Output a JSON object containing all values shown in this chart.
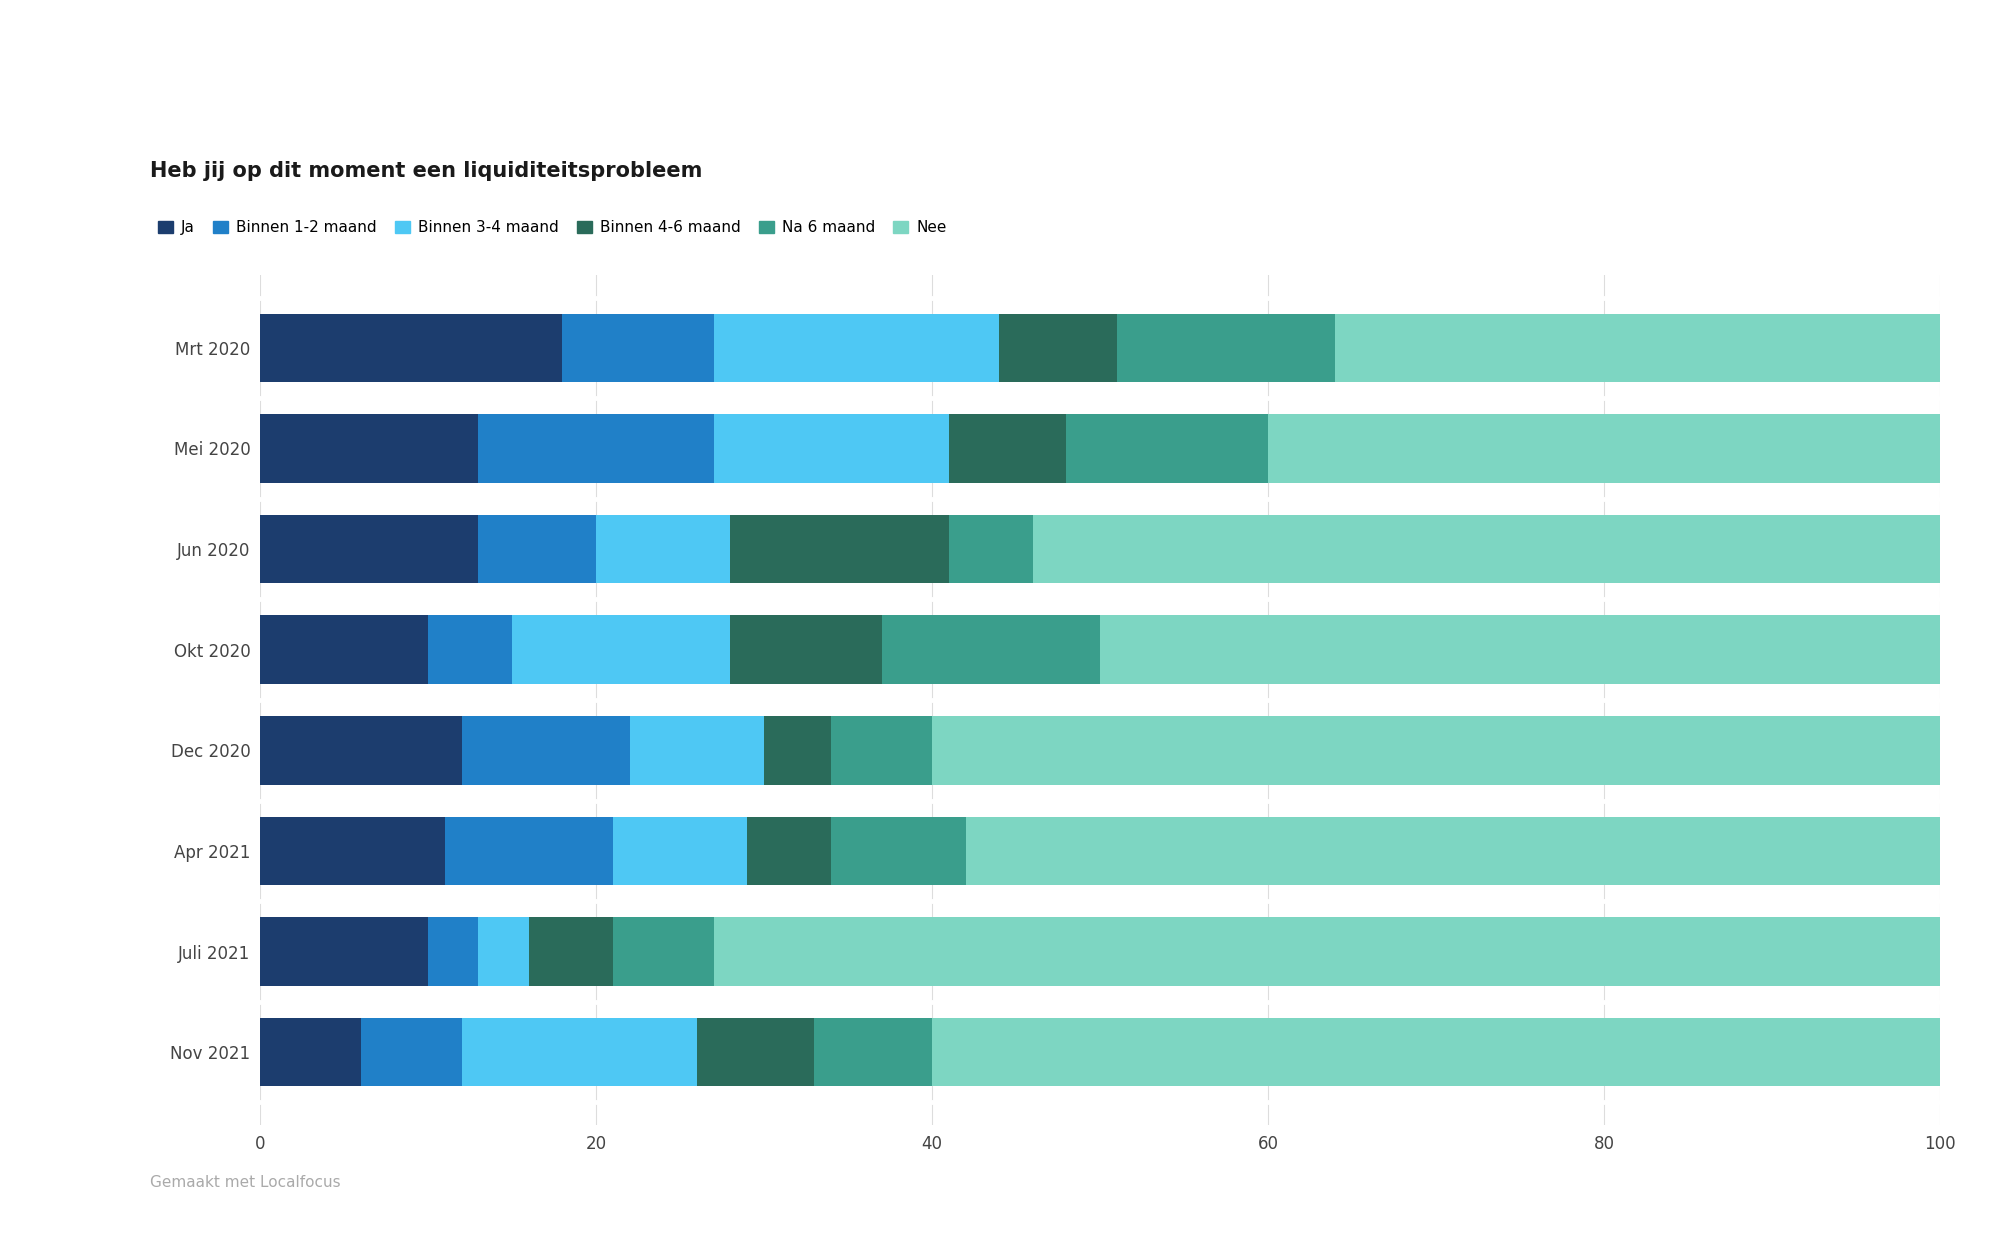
{
  "title": "Heb jij op dit moment een liquiditeitsprobleem",
  "categories": [
    "Mrt 2020",
    "Mei 2020",
    "Jun 2020",
    "Okt 2020",
    "Dec 2020",
    "Apr 2021",
    "Juli 2021",
    "Nov 2021"
  ],
  "series": {
    "Ja": [
      18,
      13,
      13,
      10,
      12,
      11,
      10,
      6
    ],
    "Binnen 1-2 maand": [
      9,
      14,
      7,
      5,
      10,
      10,
      3,
      6
    ],
    "Binnen 3-4 maand": [
      17,
      14,
      8,
      13,
      8,
      8,
      3,
      14
    ],
    "Binnen 4-6 maand": [
      7,
      7,
      13,
      9,
      4,
      5,
      5,
      7
    ],
    "Na 6 maand": [
      13,
      12,
      5,
      13,
      6,
      8,
      6,
      7
    ],
    "Nee": [
      36,
      40,
      54,
      50,
      60,
      58,
      73,
      60
    ]
  },
  "colors": {
    "Ja": "#1c3d6e",
    "Binnen 1-2 maand": "#2080c8",
    "Binnen 3-4 maand": "#4ec8f4",
    "Binnen 4-6 maand": "#2a6b5a",
    "Na 6 maand": "#3a9e8c",
    "Nee": "#7dd6c2"
  },
  "legend_order": [
    "Ja",
    "Binnen 1-2 maand",
    "Binnen 3-4 maand",
    "Binnen 4-6 maand",
    "Na 6 maand",
    "Nee"
  ],
  "xlim": [
    0,
    100
  ],
  "xticks": [
    0,
    20,
    40,
    60,
    80,
    100
  ],
  "background_color": "#ffffff",
  "bar_height": 0.68,
  "title_fontsize": 15,
  "legend_fontsize": 11,
  "tick_fontsize": 12,
  "footer": "Gemaakt met Localfocus",
  "footer_color": "#aaaaaa",
  "footer_fontsize": 11
}
